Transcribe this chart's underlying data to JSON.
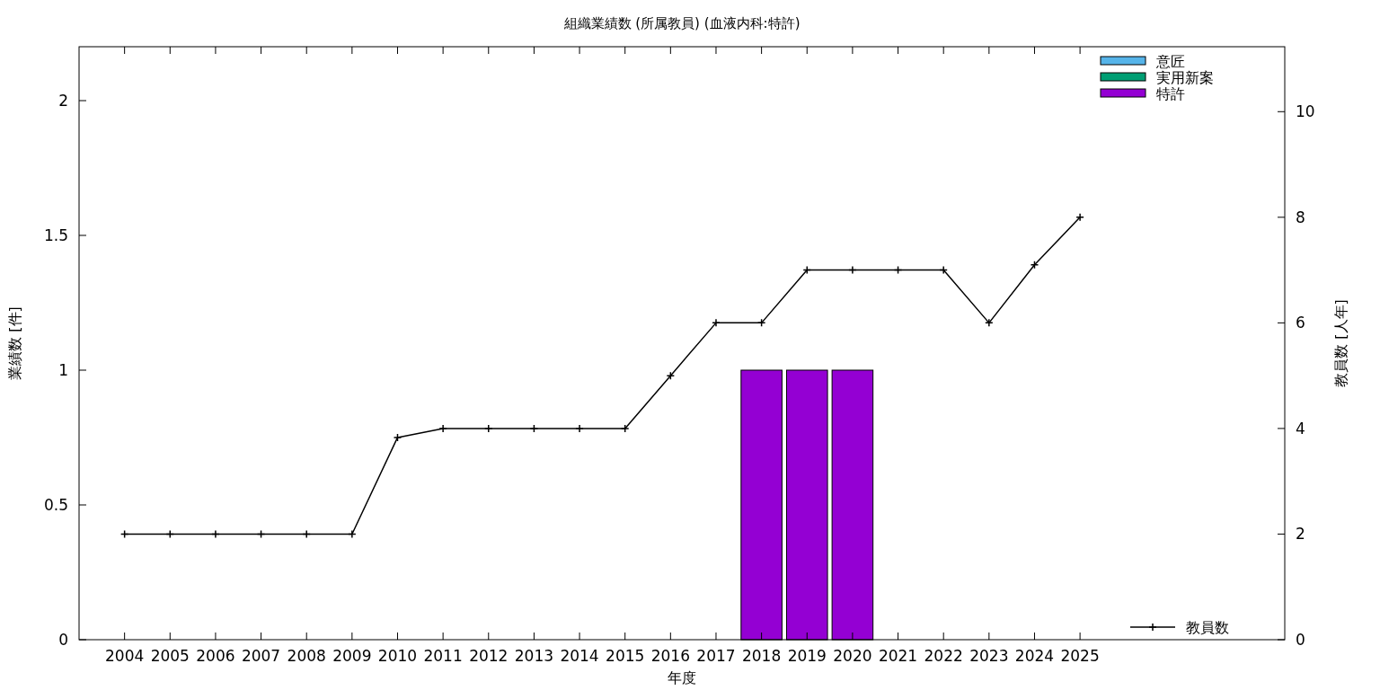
{
  "chart_data": {
    "type": "bar",
    "title": "組織業績数 (所属教員) (血液内科:特許)",
    "xlabel": "年度",
    "ylabel": "業績数 [件]",
    "y2label": "教員数 [人年]",
    "x": [
      2004,
      2005,
      2006,
      2007,
      2008,
      2009,
      2010,
      2011,
      2012,
      2013,
      2014,
      2015,
      2016,
      2017,
      2018,
      2019,
      2020,
      2021,
      2022,
      2023,
      2024,
      2025
    ],
    "xlim": [
      2003,
      2029.5
    ],
    "xticks": [
      2004,
      2005,
      2006,
      2007,
      2008,
      2009,
      2010,
      2011,
      2012,
      2013,
      2014,
      2015,
      2016,
      2017,
      2018,
      2019,
      2020,
      2021,
      2022,
      2023,
      2024,
      2025
    ],
    "ylim": [
      0,
      2.2
    ],
    "yticks": [
      0,
      0.5,
      1,
      1.5,
      2
    ],
    "y2lim": [
      0,
      11.23
    ],
    "y2ticks": [
      0,
      2,
      4,
      6,
      8,
      10
    ],
    "legend": "right",
    "grid": false,
    "series": [
      {
        "name": "意匠",
        "color": "#56b4e9",
        "values": [
          null,
          null,
          null,
          null,
          null,
          null,
          null,
          null,
          null,
          null,
          null,
          null,
          null,
          null,
          null,
          null,
          null,
          null,
          null,
          null,
          null,
          null
        ]
      },
      {
        "name": "実用新案",
        "color": "#009e73",
        "values": [
          null,
          null,
          null,
          null,
          null,
          null,
          null,
          null,
          null,
          null,
          null,
          null,
          null,
          null,
          null,
          null,
          null,
          null,
          null,
          null,
          null,
          null
        ]
      },
      {
        "name": "特許",
        "color": "#9400d3",
        "values": [
          null,
          null,
          null,
          null,
          null,
          null,
          null,
          null,
          null,
          null,
          null,
          null,
          null,
          null,
          1,
          1,
          1,
          null,
          null,
          null,
          null,
          null
        ]
      },
      {
        "name": "教員数",
        "type": "line",
        "axis": "y2",
        "color": "#000000",
        "marker": "cross",
        "values": [
          2,
          2,
          2,
          2,
          2,
          2,
          3.83,
          4,
          4,
          4,
          4,
          4,
          5,
          6,
          6,
          7,
          7,
          7,
          7,
          6,
          7.1,
          8
        ]
      }
    ]
  }
}
